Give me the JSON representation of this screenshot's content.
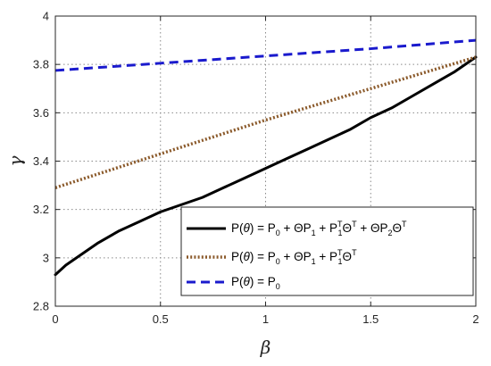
{
  "chart_data": {
    "type": "line",
    "xlabel": "β",
    "ylabel": "γ",
    "xlim": [
      0,
      2
    ],
    "ylim": [
      2.8,
      4
    ],
    "xticks": [
      0,
      0.5,
      1,
      1.5,
      2
    ],
    "yticks": [
      2.8,
      3,
      3.2,
      3.4,
      3.6,
      3.8,
      4
    ],
    "xtick_labels": [
      "0",
      "0.5",
      "1",
      "1.5",
      "2"
    ],
    "ytick_labels": [
      "2.8",
      "3",
      "3.2",
      "3.4",
      "3.6",
      "3.8",
      "4"
    ],
    "grid": true,
    "legend_position": "lower-right",
    "series": [
      {
        "name": "P(θ) = P0 + ΘP1 + P1TΘT + ΘP2ΘT",
        "color": "#000000",
        "style": "solid",
        "x": [
          0,
          0.05,
          0.1,
          0.2,
          0.3,
          0.4,
          0.5,
          0.6,
          0.7,
          0.8,
          0.9,
          1.0,
          1.1,
          1.2,
          1.3,
          1.4,
          1.5,
          1.6,
          1.7,
          1.8,
          1.9,
          2.0
        ],
        "y": [
          2.93,
          2.97,
          3.0,
          3.06,
          3.11,
          3.15,
          3.19,
          3.22,
          3.25,
          3.29,
          3.33,
          3.37,
          3.41,
          3.45,
          3.49,
          3.53,
          3.58,
          3.62,
          3.67,
          3.72,
          3.77,
          3.83
        ]
      },
      {
        "name": "P(θ) = P0 + ΘP1 + P1TΘT",
        "color": "#8b5a2b",
        "style": "dotted",
        "x": [
          0,
          0.5,
          1.0,
          1.5,
          2.0
        ],
        "y": [
          3.29,
          3.43,
          3.57,
          3.7,
          3.83
        ]
      },
      {
        "name": "P(θ) = P0",
        "color": "#1a1acd",
        "style": "dashed",
        "x": [
          0,
          0.5,
          1.0,
          1.5,
          2.0
        ],
        "y": [
          3.775,
          3.805,
          3.835,
          3.865,
          3.9
        ]
      }
    ]
  }
}
